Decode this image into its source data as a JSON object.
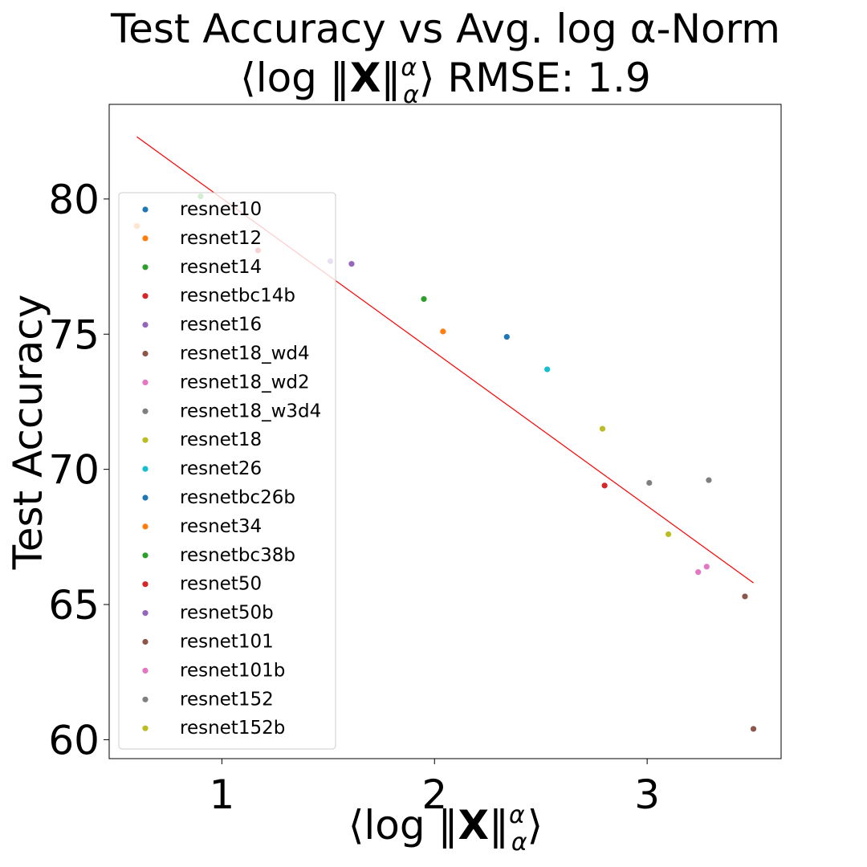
{
  "chart_data": {
    "type": "scatter",
    "title_line1": "Test Accuracy vs Avg. log α-Norm",
    "title_line2_prefix": "⟨log ‖",
    "title_line2_X": "X",
    "title_line2_norm_close": "‖",
    "title_line2_sup": "α",
    "title_line2_sub": "α",
    "title_line2_suffix": "⟩ RMSE: 1.9",
    "xlabel_prefix": "⟨log ‖",
    "xlabel_X": "X",
    "xlabel_norm_close": "‖",
    "xlabel_sup": "α",
    "xlabel_sub": "α",
    "xlabel_suffix": "⟩",
    "ylabel": "Test Accuracy",
    "xlim": [
      0.47,
      3.63
    ],
    "ylim": [
      59.3,
      83.5
    ],
    "xticks": [
      {
        "value": 1,
        "label": "1"
      },
      {
        "value": 2,
        "label": "2"
      },
      {
        "value": 3,
        "label": "3"
      }
    ],
    "yticks": [
      {
        "value": 60,
        "label": "60"
      },
      {
        "value": 65,
        "label": "65"
      },
      {
        "value": 70,
        "label": "70"
      },
      {
        "value": 75,
        "label": "75"
      },
      {
        "value": 80,
        "label": "80"
      }
    ],
    "fit_line": {
      "x": [
        0.6,
        3.5
      ],
      "y": [
        82.3,
        65.8
      ],
      "color": "#ff0000"
    },
    "legend_position": "upper-left",
    "series": [
      {
        "name": "resnet10",
        "color": "#1f77b4",
        "x": 0.6,
        "y": 79.0
      },
      {
        "name": "resnet12",
        "color": "#ff7f0e",
        "x": 0.6,
        "y": 79.0
      },
      {
        "name": "resnet14",
        "color": "#2ca02c",
        "x": 0.9,
        "y": 80.1
      },
      {
        "name": "resnetbc14b",
        "color": "#d62728",
        "x": 1.17,
        "y": 78.1
      },
      {
        "name": "resnet16",
        "color": "#9467bd",
        "x": 1.51,
        "y": 77.7
      },
      {
        "name": "resnet18_wd4",
        "color": "#8c564b",
        "x": 3.5,
        "y": 60.4
      },
      {
        "name": "resnet18_wd2",
        "color": "#e377c2",
        "x": 3.24,
        "y": 66.2
      },
      {
        "name": "resnet18_w3d4",
        "color": "#7f7f7f",
        "x": 3.29,
        "y": 69.6
      },
      {
        "name": "resnet18",
        "color": "#bcbd22",
        "x": 2.79,
        "y": 71.5
      },
      {
        "name": "resnet26",
        "color": "#17becf",
        "x": 2.53,
        "y": 73.7
      },
      {
        "name": "resnetbc26b",
        "color": "#1f77b4",
        "x": 2.34,
        "y": 74.9
      },
      {
        "name": "resnet34",
        "color": "#ff7f0e",
        "x": 2.04,
        "y": 75.1
      },
      {
        "name": "resnetbc38b",
        "color": "#2ca02c",
        "x": 1.95,
        "y": 76.3
      },
      {
        "name": "resnet50",
        "color": "#d62728",
        "x": 2.8,
        "y": 69.4
      },
      {
        "name": "resnet50b",
        "color": "#9467bd",
        "x": 1.61,
        "y": 77.6
      },
      {
        "name": "resnet101",
        "color": "#8c564b",
        "x": 3.46,
        "y": 65.3
      },
      {
        "name": "resnet101b",
        "color": "#e377c2",
        "x": 3.28,
        "y": 66.4
      },
      {
        "name": "resnet152",
        "color": "#7f7f7f",
        "x": 3.01,
        "y": 69.5
      },
      {
        "name": "resnet152b",
        "color": "#bcbd22",
        "x": 3.1,
        "y": 67.6
      }
    ]
  }
}
